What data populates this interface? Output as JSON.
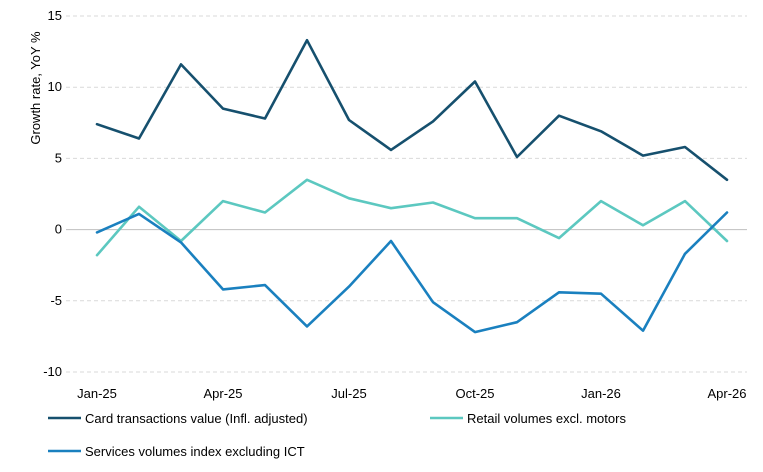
{
  "chart_data": {
    "type": "line",
    "ylabel": "Growth rate, YoY %",
    "xlabel": "",
    "ylim": [
      -10,
      15
    ],
    "yticks": [
      15,
      10,
      5,
      0,
      -5,
      -10
    ],
    "grid": "horizontal dashed",
    "legend_position": "bottom",
    "categories": [
      "Jan-25",
      "Feb-25",
      "Mar-25",
      "Apr-25",
      "May-25",
      "Jun-25",
      "Jul-25",
      "Aug-25",
      "Sep-25",
      "Oct-25",
      "Nov-25",
      "Dec-25",
      "Jan-26",
      "Feb-26",
      "Mar-26",
      "Apr-26"
    ],
    "tick_labels": [
      {
        "index": 0,
        "label": "Jan-25"
      },
      {
        "index": 3,
        "label": "Apr-25"
      },
      {
        "index": 6,
        "label": "Jul-25"
      },
      {
        "index": 9,
        "label": "Oct-25"
      },
      {
        "index": 12,
        "label": "Jan-26"
      },
      {
        "index": 15,
        "label": "Apr-26"
      }
    ],
    "series": [
      {
        "name": "Card transactions value (Infl. adjusted)",
        "color": "#16506e",
        "values": [
          7.4,
          6.4,
          11.6,
          8.5,
          7.8,
          13.3,
          7.7,
          5.6,
          7.6,
          10.4,
          5.1,
          8.0,
          6.9,
          5.2,
          5.8,
          3.5
        ]
      },
      {
        "name": "Retail volumes excl. motors",
        "color": "#5cc8c0",
        "values": [
          -1.8,
          1.6,
          -0.8,
          2.0,
          1.2,
          3.5,
          2.2,
          1.5,
          1.9,
          0.8,
          0.8,
          -0.6,
          2.0,
          0.3,
          2.0,
          -0.8
        ]
      },
      {
        "name": "Services volumes index excluding ICT",
        "color": "#1a80bf",
        "values": [
          -0.2,
          1.1,
          -0.9,
          -4.2,
          -3.9,
          -6.8,
          -4.0,
          -0.8,
          -5.1,
          -7.2,
          -6.5,
          -4.4,
          -4.5,
          -7.1,
          -1.7,
          1.2
        ]
      }
    ]
  }
}
